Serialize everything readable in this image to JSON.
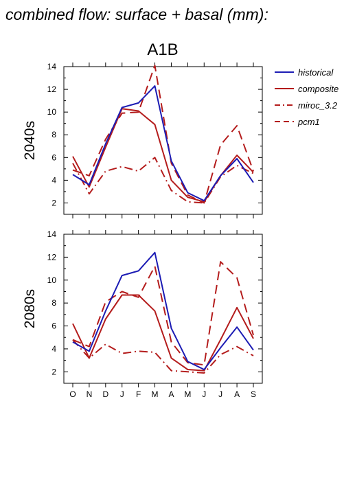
{
  "title": "combined flow: surface + basal (mm):",
  "chart_data": {
    "type": "line",
    "scenario": "A1B",
    "categories": [
      "O",
      "N",
      "D",
      "J",
      "F",
      "M",
      "A",
      "M",
      "J",
      "J",
      "A",
      "S"
    ],
    "ylim": [
      1,
      14
    ],
    "yticks": [
      2,
      4,
      6,
      8,
      10,
      12,
      14
    ],
    "legend_position": "right",
    "series_styles": [
      {
        "name": "historical",
        "color": "#1c1cb4",
        "dash": "solid"
      },
      {
        "name": "composite",
        "color": "#b41c1c",
        "dash": "solid"
      },
      {
        "name": "miroc_3.2",
        "color": "#b41c1c",
        "dash": "dashdot"
      },
      {
        "name": "pcm1",
        "color": "#b41c1c",
        "dash": "dashed"
      }
    ],
    "panels": [
      {
        "label": "2040s",
        "series": [
          {
            "name": "historical",
            "values": [
              4.5,
              3.6,
              7.2,
              10.4,
              10.8,
              12.3,
              5.7,
              2.9,
              2.2,
              4.4,
              5.9,
              3.8
            ]
          },
          {
            "name": "composite",
            "values": [
              6.1,
              3.4,
              6.9,
              10.3,
              10.1,
              8.9,
              4.0,
              2.5,
              2.1,
              4.4,
              6.2,
              4.7
            ]
          },
          {
            "name": "miroc_3.2",
            "values": [
              5.5,
              2.8,
              4.8,
              5.2,
              4.8,
              6.0,
              3.1,
              2.1,
              2.0,
              4.3,
              5.3,
              4.6
            ]
          },
          {
            "name": "pcm1",
            "values": [
              4.9,
              4.4,
              7.6,
              9.9,
              10.0,
              14.1,
              5.5,
              2.7,
              2.0,
              7.1,
              8.8,
              4.8
            ]
          }
        ]
      },
      {
        "label": "2080s",
        "series": [
          {
            "name": "historical",
            "values": [
              4.6,
              3.8,
              7.3,
              10.4,
              10.8,
              12.4,
              5.8,
              2.9,
              2.2,
              4.1,
              5.9,
              3.9
            ]
          },
          {
            "name": "composite",
            "values": [
              6.2,
              3.2,
              6.6,
              8.7,
              8.7,
              7.3,
              3.2,
              2.2,
              2.1,
              4.8,
              7.6,
              4.9
            ]
          },
          {
            "name": "miroc_3.2",
            "values": [
              4.8,
              3.2,
              4.4,
              3.6,
              3.8,
              3.7,
              2.1,
              2.0,
              1.9,
              3.5,
              4.2,
              3.4
            ]
          },
          {
            "name": "pcm1",
            "values": [
              4.8,
              4.2,
              8.1,
              9.0,
              8.5,
              11.2,
              4.6,
              2.8,
              2.6,
              11.6,
              10.2,
              5.2
            ]
          }
        ]
      }
    ]
  }
}
